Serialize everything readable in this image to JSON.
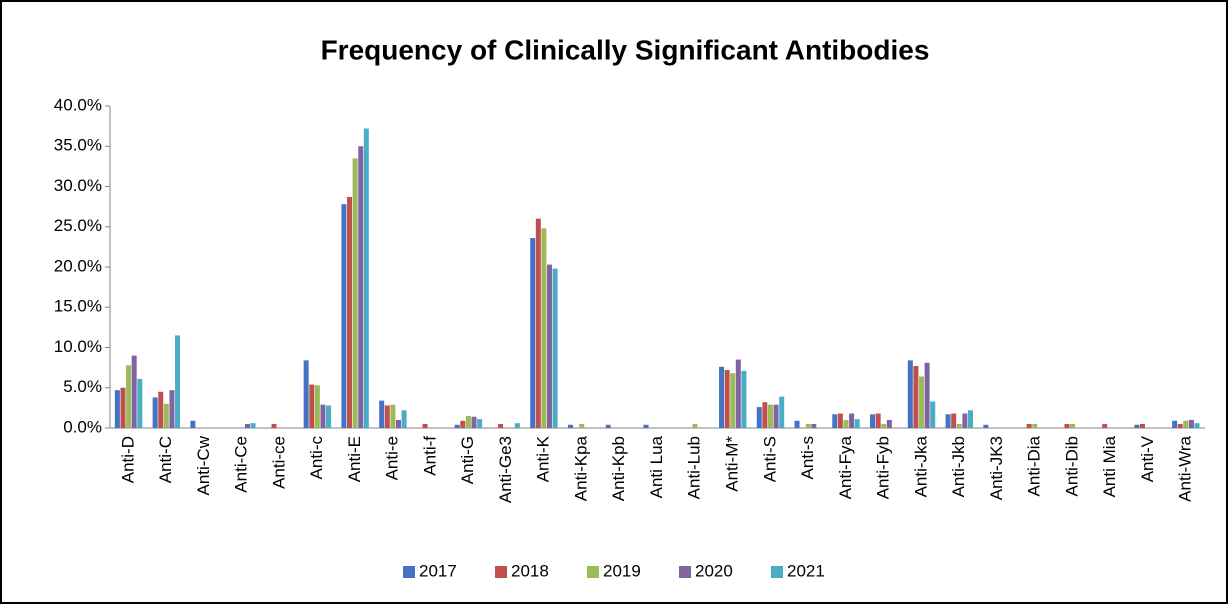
{
  "chart_data": {
    "type": "bar",
    "title": "Frequency of Clinically Significant Antibodies",
    "categories": [
      "Anti-D",
      "Anti-C",
      "Anti-Cw",
      "Anti-Ce",
      "Anti-ce",
      "Anti-c",
      "Anti-E",
      "Anti-e",
      "Anti-f",
      "Anti-G",
      "Anti-Ge3",
      "Anti-K",
      "Anti-Kpa",
      "Anti-Kpb",
      "Anti Lua",
      "Anti-Lub",
      "Anti-M*",
      "Anti-S",
      "Anti-s",
      "Anti-Fya",
      "Anti-Fyb",
      "Anti-Jka",
      "Anti-Jkb",
      "Anti-JK3",
      "Anti-Dia",
      "Anti-Dib",
      "Anti Mia",
      "Anti-V",
      "Anti-Wra"
    ],
    "series": [
      {
        "name": "2017",
        "color": "#4472c4",
        "values": [
          4.7,
          3.8,
          0.9,
          0,
          0,
          8.4,
          27.8,
          3.4,
          0,
          0.4,
          0,
          23.6,
          0.4,
          0.4,
          0.4,
          0,
          7.6,
          2.6,
          0.9,
          1.7,
          1.7,
          8.4,
          1.7,
          0.4,
          0,
          0,
          0,
          0.4,
          0.9
        ]
      },
      {
        "name": "2018",
        "color": "#c0504d",
        "values": [
          5.0,
          4.5,
          0,
          0,
          0.5,
          5.4,
          28.7,
          2.8,
          0.5,
          0.9,
          0.5,
          26.0,
          0,
          0,
          0,
          0,
          7.2,
          3.2,
          0,
          1.8,
          1.8,
          7.7,
          1.8,
          0,
          0.5,
          0.5,
          0.5,
          0.5,
          0.5
        ]
      },
      {
        "name": "2019",
        "color": "#9bbb59",
        "values": [
          7.8,
          3.0,
          0,
          0,
          0,
          5.3,
          33.5,
          2.9,
          0,
          1.5,
          0,
          24.8,
          0.5,
          0,
          0,
          0.5,
          6.8,
          2.9,
          0.5,
          1.0,
          0.5,
          6.4,
          0.5,
          0,
          0.5,
          0.5,
          0,
          0,
          0.9
        ]
      },
      {
        "name": "2020",
        "color": "#8064a2",
        "values": [
          9.0,
          4.7,
          0,
          0.5,
          0,
          2.9,
          35.0,
          1.0,
          0,
          1.4,
          0,
          20.3,
          0,
          0,
          0,
          0,
          8.5,
          2.9,
          0.5,
          1.8,
          1.0,
          8.1,
          1.8,
          0,
          0,
          0,
          0,
          0,
          1.0
        ]
      },
      {
        "name": "2021",
        "color": "#4bacc6",
        "values": [
          6.1,
          11.5,
          0,
          0.6,
          0,
          2.8,
          37.2,
          2.2,
          0,
          1.1,
          0.6,
          19.8,
          0,
          0,
          0,
          0,
          7.1,
          3.9,
          0,
          1.1,
          0,
          3.3,
          2.2,
          0,
          0,
          0,
          0,
          0,
          0.6
        ]
      }
    ],
    "ylim": [
      0,
      40
    ],
    "yticks": [
      {
        "value": 0,
        "label": "0.0%"
      },
      {
        "value": 5,
        "label": "5.0%"
      },
      {
        "value": 10,
        "label": "10.0%"
      },
      {
        "value": 15,
        "label": "15.0%"
      },
      {
        "value": 20,
        "label": "20.0%"
      },
      {
        "value": 25,
        "label": "25.0%"
      },
      {
        "value": 30,
        "label": "30.0%"
      },
      {
        "value": 35,
        "label": "35.0%"
      },
      {
        "value": 40,
        "label": "40.0%"
      }
    ],
    "grid": false,
    "legend": "bottom"
  }
}
